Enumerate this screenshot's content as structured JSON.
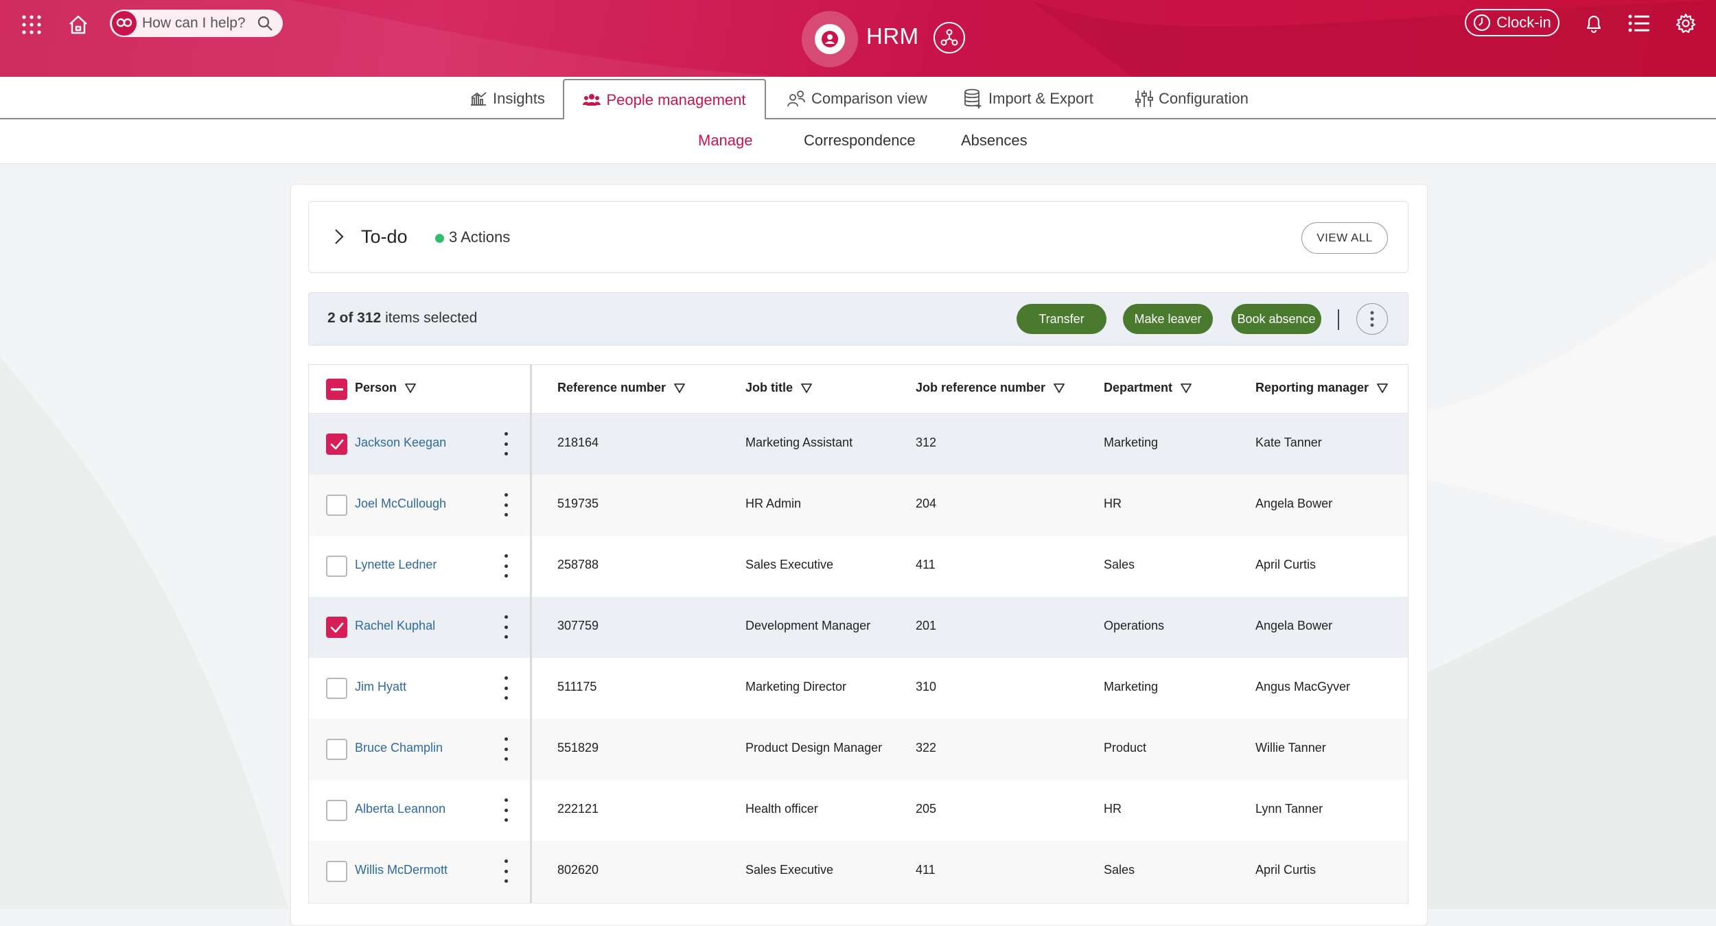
{
  "header": {
    "search_placeholder": "How can I help?",
    "app_title": "HRM",
    "clockin_label": "Clock-in",
    "brand_color": "#c8154c"
  },
  "tabs": [
    {
      "label": "Insights",
      "icon": "bar-chart-icon"
    },
    {
      "label": "People management",
      "icon": "people-icon",
      "active": true
    },
    {
      "label": "Comparison view",
      "icon": "person-compare-icon"
    },
    {
      "label": "Import & Export",
      "icon": "database-icon"
    },
    {
      "label": "Configuration",
      "icon": "sliders-icon"
    }
  ],
  "subnav": [
    {
      "label": "Manage",
      "active": true
    },
    {
      "label": "Correspondence"
    },
    {
      "label": "Absences"
    }
  ],
  "todo": {
    "title": "To-do",
    "actions": "3 Actions",
    "view_all": "VIEW ALL"
  },
  "selection": {
    "count": "2 of 312",
    "suffix": "items selected",
    "buttons": [
      "Transfer",
      "Make leaver",
      "Book absence"
    ]
  },
  "table": {
    "columns": [
      "Person",
      "Reference number",
      "Job title",
      "Job reference number",
      "Department",
      "Reporting manager"
    ],
    "rows": [
      {
        "selected": true,
        "person": "Jackson Keegan",
        "ref": "218164",
        "job": "Marketing Assistant",
        "jobref": "312",
        "dept": "Marketing",
        "manager": "Kate Tanner"
      },
      {
        "selected": false,
        "person": "Joel McCullough",
        "ref": "519735",
        "job": "HR Admin",
        "jobref": "204",
        "dept": "HR",
        "manager": "Angela Bower"
      },
      {
        "selected": false,
        "person": "Lynette Ledner",
        "ref": "258788",
        "job": "Sales Executive",
        "jobref": "411",
        "dept": "Sales",
        "manager": "April Curtis"
      },
      {
        "selected": true,
        "person": "Rachel Kuphal",
        "ref": "307759",
        "job": "Development Manager",
        "jobref": "201",
        "dept": "Operations",
        "manager": "Angela Bower"
      },
      {
        "selected": false,
        "person": "Jim Hyatt",
        "ref": "511175",
        "job": "Marketing Director",
        "jobref": "310",
        "dept": "Marketing",
        "manager": "Angus MacGyver"
      },
      {
        "selected": false,
        "person": "Bruce Champlin",
        "ref": "551829",
        "job": "Product Design Manager",
        "jobref": "322",
        "dept": "Product",
        "manager": "Willie Tanner"
      },
      {
        "selected": false,
        "person": "Alberta Leannon",
        "ref": "222121",
        "job": "Health officer",
        "jobref": "205",
        "dept": "HR",
        "manager": "Lynn Tanner"
      },
      {
        "selected": false,
        "person": "Willis McDermott",
        "ref": "802620",
        "job": "Sales Executive",
        "jobref": "411",
        "dept": "Sales",
        "manager": "April Curtis"
      }
    ]
  }
}
